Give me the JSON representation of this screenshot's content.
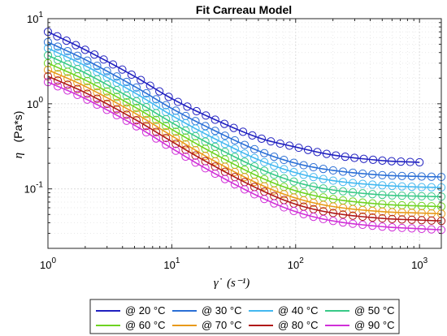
{
  "chart_data": {
    "type": "line",
    "title": "Fit Carreau Model",
    "ylabel_symbol": "η",
    "ylabel_unit": "(Pa*s)",
    "xlabel_symbol": "γ̇",
    "xlabel_unit": "(s⁻¹)",
    "xscale": "log",
    "yscale": "log",
    "xlim": [
      1,
      1500
    ],
    "ylim": [
      0.02,
      10
    ],
    "grid": true,
    "x_ticks": [
      {
        "value": 1,
        "base": "10",
        "exp": "0"
      },
      {
        "value": 10,
        "base": "10",
        "exp": "1"
      },
      {
        "value": 100,
        "base": "10",
        "exp": "2"
      },
      {
        "value": 1000,
        "base": "10",
        "exp": "3"
      }
    ],
    "y_ticks": [
      {
        "value": 10,
        "base": "10",
        "exp": "1"
      },
      {
        "value": 1,
        "base": "10",
        "exp": "0"
      },
      {
        "value": 0.1,
        "base": "10",
        "exp": "-1"
      }
    ],
    "legend_position": "bottom",
    "marker": "open-circle",
    "series": [
      {
        "name": "@ 20 °C",
        "color": "#2020c0",
        "x_max": 1000,
        "points": [
          [
            1,
            7.0
          ],
          [
            2,
            4.3
          ],
          [
            5,
            2.1
          ],
          [
            10,
            1.15
          ],
          [
            20,
            0.7
          ],
          [
            50,
            0.4
          ],
          [
            100,
            0.31
          ],
          [
            200,
            0.25
          ],
          [
            500,
            0.215
          ],
          [
            1000,
            0.205
          ]
        ]
      },
      {
        "name": "@ 30 °C",
        "color": "#2a6fd6",
        "x_max": 1500,
        "points": [
          [
            1,
            5.3
          ],
          [
            2,
            3.3
          ],
          [
            5,
            1.6
          ],
          [
            10,
            0.88
          ],
          [
            20,
            0.52
          ],
          [
            50,
            0.28
          ],
          [
            100,
            0.2
          ],
          [
            200,
            0.165
          ],
          [
            500,
            0.145
          ],
          [
            1000,
            0.14
          ],
          [
            1500,
            0.138
          ]
        ]
      },
      {
        "name": "@ 40 °C",
        "color": "#43b8f0",
        "x_max": 1500,
        "points": [
          [
            1,
            4.5
          ],
          [
            2,
            2.8
          ],
          [
            5,
            1.35
          ],
          [
            10,
            0.73
          ],
          [
            20,
            0.42
          ],
          [
            50,
            0.22
          ],
          [
            100,
            0.155
          ],
          [
            200,
            0.125
          ],
          [
            500,
            0.11
          ],
          [
            1000,
            0.105
          ],
          [
            1500,
            0.104
          ]
        ]
      },
      {
        "name": "@ 50 °C",
        "color": "#38c987",
        "x_max": 1500,
        "points": [
          [
            1,
            3.7
          ],
          [
            2,
            2.3
          ],
          [
            5,
            1.1
          ],
          [
            10,
            0.6
          ],
          [
            20,
            0.34
          ],
          [
            50,
            0.175
          ],
          [
            100,
            0.12
          ],
          [
            200,
            0.097
          ],
          [
            500,
            0.085
          ],
          [
            1000,
            0.082
          ],
          [
            1500,
            0.081
          ]
        ]
      },
      {
        "name": "@ 60 °C",
        "color": "#6ed321",
        "x_max": 1500,
        "points": [
          [
            1,
            3.0
          ],
          [
            2,
            1.9
          ],
          [
            5,
            0.92
          ],
          [
            10,
            0.5
          ],
          [
            20,
            0.28
          ],
          [
            50,
            0.14
          ],
          [
            100,
            0.095
          ],
          [
            200,
            0.076
          ],
          [
            500,
            0.066
          ],
          [
            1000,
            0.063
          ],
          [
            1500,
            0.062
          ]
        ]
      },
      {
        "name": "@ 70 °C",
        "color": "#e89a1a",
        "x_max": 1500,
        "points": [
          [
            1,
            2.5
          ],
          [
            2,
            1.6
          ],
          [
            5,
            0.78
          ],
          [
            10,
            0.42
          ],
          [
            20,
            0.23
          ],
          [
            50,
            0.115
          ],
          [
            100,
            0.078
          ],
          [
            200,
            0.062
          ],
          [
            500,
            0.054
          ],
          [
            1000,
            0.052
          ],
          [
            1500,
            0.051
          ]
        ]
      },
      {
        "name": "@ 80 °C",
        "color": "#b01818",
        "x_max": 1500,
        "points": [
          [
            1,
            2.1
          ],
          [
            2,
            1.35
          ],
          [
            5,
            0.66
          ],
          [
            10,
            0.36
          ],
          [
            20,
            0.2
          ],
          [
            50,
            0.1
          ],
          [
            100,
            0.066
          ],
          [
            200,
            0.052
          ],
          [
            500,
            0.045
          ],
          [
            1000,
            0.043
          ],
          [
            1500,
            0.042
          ]
        ]
      },
      {
        "name": "@ 90 °C",
        "color": "#d030d8",
        "x_max": 1500,
        "points": [
          [
            1,
            1.8
          ],
          [
            2,
            1.15
          ],
          [
            5,
            0.56
          ],
          [
            10,
            0.3
          ],
          [
            20,
            0.165
          ],
          [
            50,
            0.082
          ],
          [
            100,
            0.054
          ],
          [
            200,
            0.042
          ],
          [
            500,
            0.036
          ],
          [
            1000,
            0.034
          ],
          [
            1500,
            0.033
          ]
        ]
      }
    ]
  }
}
